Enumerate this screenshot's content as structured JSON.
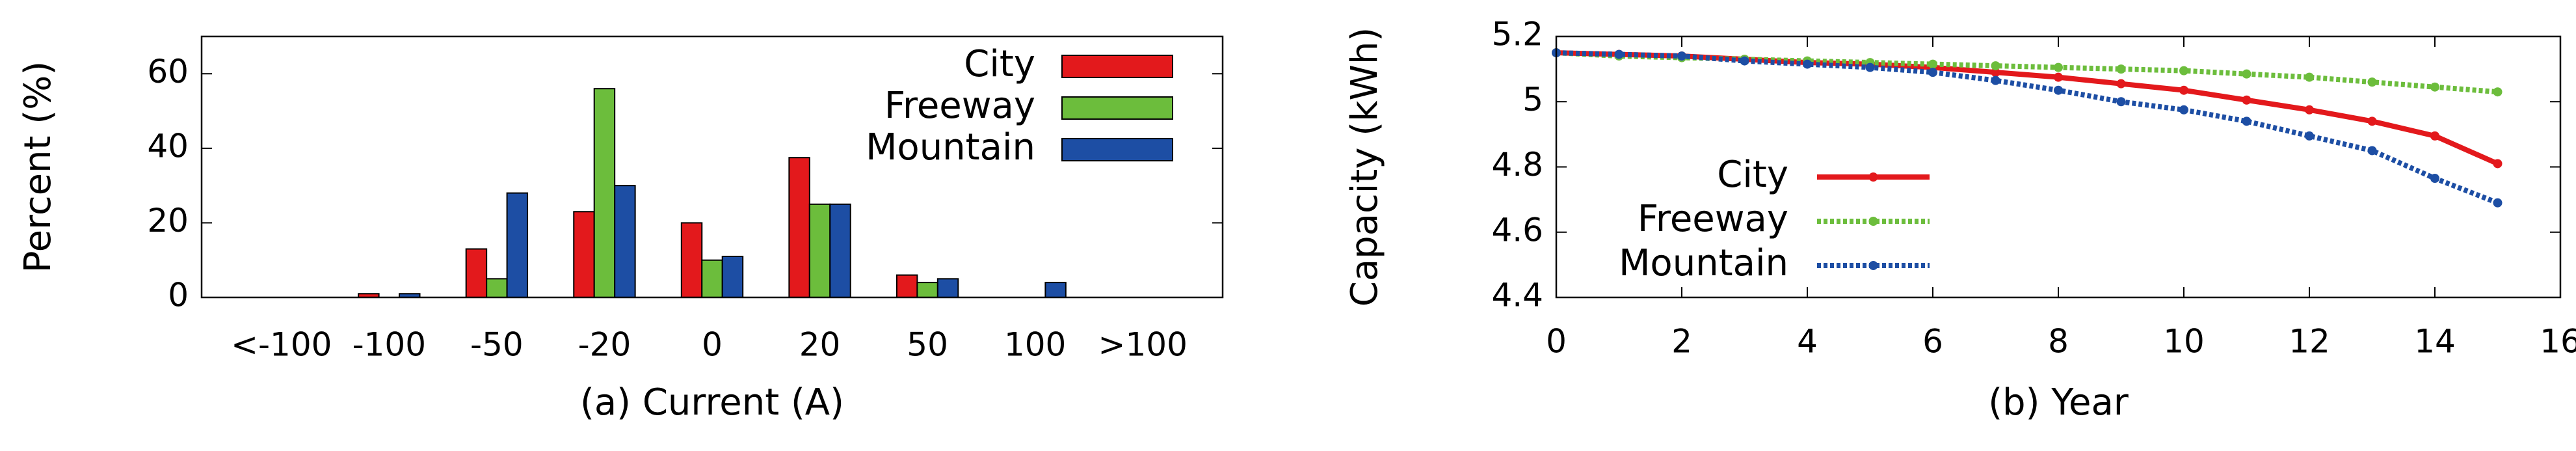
{
  "chart_data": [
    {
      "type": "bar",
      "xlabel": "(a) Current (A)",
      "ylabel": "Percent (%)",
      "categories": [
        "<-100",
        "-100",
        "-50",
        "-20",
        "0",
        "20",
        "50",
        "100",
        ">100"
      ],
      "series": [
        {
          "name": "City",
          "color": "#e3191c",
          "values": [
            0,
            1,
            13,
            23,
            20,
            37.5,
            6,
            0,
            0
          ]
        },
        {
          "name": "Freeway",
          "color": "#6cbd3c",
          "values": [
            0,
            0,
            5,
            56,
            10,
            25,
            4,
            0,
            0
          ]
        },
        {
          "name": "Mountain",
          "color": "#1d4ea4",
          "values": [
            0,
            1,
            28,
            30,
            11,
            25,
            5,
            4,
            0
          ]
        }
      ],
      "ylim": [
        0,
        70
      ],
      "yticks": [
        0,
        20,
        40,
        60
      ],
      "grid": false,
      "legend": "upper right"
    },
    {
      "type": "line",
      "xlabel": "(b) Year",
      "ylabel": "Capacity (kWh)",
      "x": [
        0,
        1,
        2,
        3,
        4,
        5,
        6,
        7,
        8,
        9,
        10,
        11,
        12,
        13,
        14,
        15
      ],
      "series": [
        {
          "name": "City",
          "color": "#e3191c",
          "linestyle": "solid",
          "values": [
            5.15,
            5.145,
            5.14,
            5.13,
            5.12,
            5.115,
            5.105,
            5.09,
            5.075,
            5.055,
            5.035,
            5.005,
            4.975,
            4.94,
            4.895,
            4.81
          ]
        },
        {
          "name": "Freeway",
          "color": "#6cbd3c",
          "linestyle": "dotted",
          "values": [
            5.15,
            5.14,
            5.135,
            5.13,
            5.125,
            5.12,
            5.115,
            5.11,
            5.105,
            5.1,
            5.095,
            5.085,
            5.075,
            5.06,
            5.045,
            5.03
          ]
        },
        {
          "name": "Mountain",
          "color": "#1d4ea4",
          "linestyle": "dotted",
          "values": [
            5.15,
            5.145,
            5.14,
            5.125,
            5.115,
            5.105,
            5.09,
            5.065,
            5.035,
            5.0,
            4.975,
            4.94,
            4.895,
            4.85,
            4.765,
            4.69
          ]
        }
      ],
      "xlim": [
        0,
        16
      ],
      "xticks": [
        0,
        2,
        4,
        6,
        8,
        10,
        12,
        14,
        16
      ],
      "ylim": [
        4.4,
        5.2
      ],
      "yticks": [
        4.4,
        4.6,
        4.8,
        5,
        5.2
      ],
      "grid": false,
      "legend": "lower left"
    }
  ]
}
